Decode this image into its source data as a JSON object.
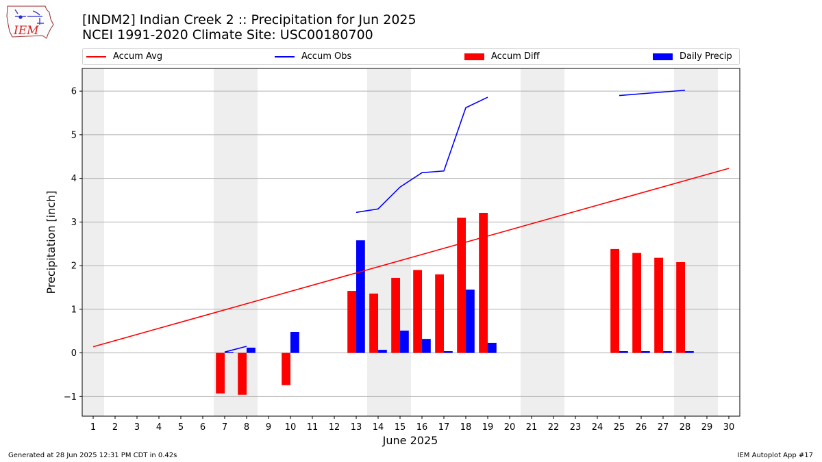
{
  "header": {
    "logo_text": "IEM",
    "title": "[INDM2] Indian Creek 2 :: Precipitation for Jun 2025",
    "subtitle": "NCEI 1991-2020 Climate Site: USC00180700"
  },
  "legend": {
    "items": [
      {
        "label": "Accum Avg",
        "kind": "line",
        "color": "#ff0000"
      },
      {
        "label": "Accum Obs",
        "kind": "line",
        "color": "#0000ff"
      },
      {
        "label": "Accum Diff",
        "kind": "box",
        "color": "#ff0000"
      },
      {
        "label": "Daily Precip",
        "kind": "box",
        "color": "#0000ff"
      }
    ]
  },
  "footer": {
    "left": "Generated at 28 Jun 2025 12:31 PM CDT in 0.42s",
    "right": "IEM Autoplot App #17"
  },
  "chart_data": {
    "type": "bar",
    "xlabel": "June 2025",
    "ylabel": "Precipitation [inch]",
    "xlim": [
      0.5,
      30.5
    ],
    "ylim": [
      -1.45,
      6.52
    ],
    "x_ticks": [
      1,
      2,
      3,
      4,
      5,
      6,
      7,
      8,
      9,
      10,
      11,
      12,
      13,
      14,
      15,
      16,
      17,
      18,
      19,
      20,
      21,
      22,
      23,
      24,
      25,
      26,
      27,
      28,
      29,
      30
    ],
    "y_ticks": [
      -1,
      0,
      1,
      2,
      3,
      4,
      5,
      6
    ],
    "y_tick_labels": [
      "−1",
      "0",
      "1",
      "2",
      "3",
      "4",
      "5",
      "6"
    ],
    "grid": "horizontal",
    "legend_placement": "top",
    "weekend_shading": [
      [
        0.5,
        1.5
      ],
      [
        6.5,
        8.5
      ],
      [
        13.5,
        15.5
      ],
      [
        20.5,
        22.5
      ],
      [
        27.5,
        29.5
      ]
    ],
    "colors": {
      "avg": "#ff0000",
      "obs": "#0000ff",
      "diff": "#ff0000",
      "daily": "#0000ff",
      "shade": "#eeeeee",
      "grid": "#b0b0b0"
    },
    "accum_avg": {
      "name": "Accum Avg",
      "x": [
        1,
        30
      ],
      "y": [
        0.14,
        4.23
      ]
    },
    "accum_obs": {
      "name": "Accum Obs",
      "segments": [
        {
          "x": [
            7,
            8
          ],
          "y": [
            0.02,
            0.15
          ]
        },
        {
          "x": [
            13,
            14,
            15,
            16,
            17,
            18,
            19
          ],
          "y": [
            3.22,
            3.3,
            3.8,
            4.13,
            4.17,
            5.62,
            5.86
          ]
        },
        {
          "x": [
            25,
            28
          ],
          "y": [
            5.9,
            6.02
          ]
        }
      ]
    },
    "accum_diff": {
      "name": "Accum Diff",
      "x": [
        7,
        8,
        10,
        13,
        14,
        15,
        16,
        17,
        18,
        19,
        25,
        26,
        27,
        28
      ],
      "values": [
        -0.93,
        -0.96,
        -0.74,
        1.42,
        1.36,
        1.72,
        1.9,
        1.8,
        3.1,
        3.21,
        2.38,
        2.29,
        2.18,
        2.08
      ]
    },
    "daily_precip": {
      "name": "Daily Precip",
      "x": [
        7,
        8,
        10,
        13,
        14,
        15,
        16,
        17,
        18,
        19,
        25,
        26,
        27,
        28
      ],
      "values": [
        0.02,
        0.12,
        0.48,
        2.58,
        0.07,
        0.51,
        0.32,
        0.04,
        1.45,
        0.23,
        0.04,
        0.04,
        0.04,
        0.04
      ]
    }
  }
}
